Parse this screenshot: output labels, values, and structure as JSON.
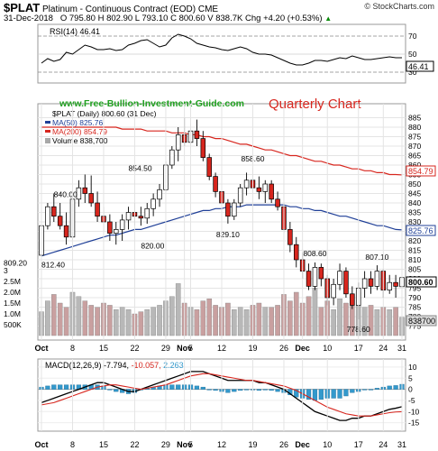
{
  "header": {
    "symbol": "$PLAT",
    "name": "Platinum - Continuous Contract (EOD)",
    "exchange": "CME",
    "date": "31-Dec-2018",
    "open": "O 795.80",
    "high": "H 802.90",
    "low": "L 793.10",
    "close": "C 800.60",
    "volume": "V 838.7K",
    "change": "Chg +4.20 (+0.53%)",
    "change_arrow": "▲",
    "source": "© StockCharts.com"
  },
  "rsi": {
    "legend": "RSI(14) 46.41",
    "value_tag": "46.41",
    "ticks": [
      "70",
      "50",
      "30"
    ],
    "levels": [
      70,
      50,
      30
    ],
    "values": [
      40,
      45,
      42,
      44,
      52,
      50,
      55,
      60,
      58,
      55,
      55,
      56,
      54,
      55,
      60,
      62,
      65,
      66,
      62,
      58,
      60,
      68,
      72,
      70,
      67,
      62,
      60,
      58,
      57,
      55,
      54,
      56,
      58,
      56,
      52,
      50,
      50,
      49,
      46,
      43,
      40,
      38,
      38,
      40,
      43,
      43,
      42,
      44,
      46,
      45,
      48,
      46,
      44,
      44,
      45,
      46,
      47,
      46,
      46
    ]
  },
  "watermark": "www.Free-Bullion-Investment-Guide.com",
  "annotation": "Quarterly Chart",
  "legend": {
    "price": "$PLAT (Daily) 800.60 (31 Dec)",
    "ma50": "MA(50) 825.76",
    "ma200": "MA(200) 854.79",
    "volume": "Volume 838,700"
  },
  "colors": {
    "up": "#ffffff",
    "down": "#d7261e",
    "ma50": "#1f3f97",
    "ma200": "#d7261e",
    "volume": "#a8a8a8",
    "rsi": "#000000",
    "hist": "#3399cc",
    "tag_close": "#000000"
  },
  "chart_data": {
    "type": "candlestick",
    "title": "$PLAT (Daily) 800.60 (31 Dec)",
    "ylim": [
      770,
      890
    ],
    "y_ticks": [
      "885",
      "880",
      "875",
      "870",
      "865",
      "860",
      "855",
      "850",
      "845",
      "840",
      "835",
      "830",
      "825",
      "820",
      "815",
      "810",
      "805",
      "800",
      "795",
      "790",
      "785",
      "780",
      "775"
    ],
    "x_tick_labels": [
      "Oct",
      "8",
      "15",
      "22",
      "29",
      "Nov",
      "5",
      "12",
      "19",
      "26",
      "Dec",
      "10",
      "17",
      "24",
      "31"
    ],
    "volume_ticks": [
      "3",
      "2.5M",
      "2.0M",
      "1.5M",
      "1.0M",
      "500K"
    ],
    "price_labels": [
      "840.00",
      "854.50",
      "812.40",
      "820.00",
      "858.60",
      "829.10",
      "808.60",
      "807.10",
      "778.60",
      "809.20"
    ],
    "right_tags": {
      "ma200": "854.79",
      "ma50": "825.76",
      "close": "800.60",
      "volume": "838700"
    },
    "ohlc": [
      [
        812.4,
        830,
        812.4,
        828
      ],
      [
        828,
        840,
        826,
        838
      ],
      [
        838,
        845,
        830,
        833
      ],
      [
        833,
        840,
        826,
        828
      ],
      [
        828,
        835,
        818,
        822
      ],
      [
        822,
        845,
        820,
        842
      ],
      [
        842,
        852,
        838,
        848
      ],
      [
        848,
        855,
        840,
        845
      ],
      [
        845,
        854.5,
        838,
        840
      ],
      [
        840,
        846,
        830,
        833
      ],
      [
        833,
        838,
        825,
        830
      ],
      [
        830,
        834,
        820,
        824
      ],
      [
        824,
        830,
        818,
        826
      ],
      [
        826,
        834,
        820,
        831
      ],
      [
        831,
        838,
        826,
        835
      ],
      [
        835,
        840,
        828,
        833
      ],
      [
        833,
        838,
        828,
        832
      ],
      [
        832,
        840,
        829,
        837
      ],
      [
        837,
        845,
        833,
        842
      ],
      [
        842,
        850,
        838,
        847
      ],
      [
        847,
        862,
        846,
        860
      ],
      [
        860,
        870,
        858,
        868
      ],
      [
        868,
        880,
        862,
        876
      ],
      [
        876,
        885,
        870,
        872
      ],
      [
        872,
        882,
        866,
        878
      ],
      [
        878,
        884,
        870,
        874
      ],
      [
        874,
        878,
        862,
        864
      ],
      [
        864,
        866,
        852,
        854
      ],
      [
        854,
        856,
        843,
        846
      ],
      [
        846,
        850,
        836,
        840
      ],
      [
        840,
        842,
        829.1,
        833
      ],
      [
        833,
        842,
        831,
        840
      ],
      [
        840,
        850,
        838,
        848
      ],
      [
        848,
        856,
        844,
        852
      ],
      [
        852,
        858.6,
        846,
        848
      ],
      [
        848,
        854,
        842,
        846
      ],
      [
        846,
        852,
        840,
        850
      ],
      [
        850,
        852,
        840,
        842
      ],
      [
        842,
        846,
        836,
        838
      ],
      [
        838,
        840,
        824,
        826
      ],
      [
        826,
        830,
        814,
        818
      ],
      [
        818,
        822,
        806,
        810
      ],
      [
        810,
        814,
        800,
        804
      ],
      [
        804,
        808,
        794,
        796
      ],
      [
        796,
        808.6,
        794,
        806
      ],
      [
        806,
        808,
        796,
        800
      ],
      [
        800,
        802,
        786,
        790
      ],
      [
        790,
        800,
        786,
        797
      ],
      [
        797,
        808,
        794,
        804
      ],
      [
        804,
        806,
        790,
        792
      ],
      [
        792,
        796,
        784,
        786
      ],
      [
        786,
        798,
        778.6,
        795
      ],
      [
        795,
        804,
        790,
        800
      ],
      [
        800,
        804,
        792,
        796
      ],
      [
        796,
        807.1,
        794,
        804
      ],
      [
        804,
        805,
        790,
        794
      ],
      [
        794,
        802,
        792,
        798
      ],
      [
        798,
        802,
        790,
        796
      ],
      [
        795.8,
        802.9,
        793.1,
        800.6
      ]
    ],
    "ma50": [
      812,
      813,
      814,
      815,
      816,
      817,
      818,
      819,
      820,
      821,
      822,
      823,
      823,
      824,
      825,
      826,
      826,
      827,
      828,
      829,
      830,
      831,
      832,
      833,
      834,
      835,
      836,
      836,
      837,
      837,
      838,
      838,
      838,
      839,
      839,
      839,
      839,
      839,
      839,
      839,
      838,
      838,
      837,
      837,
      836,
      836,
      835,
      834,
      833,
      833,
      832,
      831,
      830,
      829,
      828,
      828,
      827,
      826,
      825.76
    ],
    "ma200": [
      880,
      880,
      880,
      880,
      880,
      880,
      880,
      880,
      880,
      880,
      880,
      880,
      880,
      879,
      879,
      879,
      879,
      878,
      878,
      878,
      878,
      877,
      877,
      877,
      876,
      876,
      875,
      875,
      874,
      874,
      873,
      872,
      871,
      871,
      870,
      869,
      868,
      868,
      867,
      866,
      865,
      865,
      864,
      863,
      862,
      862,
      861,
      860,
      860,
      859,
      858,
      858,
      857,
      857,
      856,
      856,
      855,
      855,
      854.79
    ],
    "volume": [
      1.1,
      1.6,
      1.9,
      1.5,
      1.3,
      2.0,
      1.8,
      1.6,
      1.4,
      1.3,
      1.5,
      1.4,
      1.2,
      1.3,
      1.2,
      1.0,
      1.1,
      1.2,
      1.3,
      1.4,
      1.6,
      1.8,
      2.4,
      1.5,
      1.3,
      1.2,
      1.6,
      1.7,
      1.4,
      1.3,
      1.5,
      1.2,
      1.3,
      1.2,
      1.4,
      1.5,
      1.3,
      1.3,
      1.4,
      1.9,
      1.6,
      2.0,
      1.5,
      1.8,
      2.2,
      1.3,
      1.6,
      1.2,
      1.7,
      1.5,
      1.9,
      2.0,
      1.3,
      1.4,
      1.2,
      1.3,
      1.2,
      1.3,
      0.84
    ],
    "macd": {
      "legend_main": "MACD(12,26,9) -7.794,",
      "legend_signal": "-10.057,",
      "legend_hist": "2.263",
      "ticks": [
        "10",
        "5",
        "0",
        "-5",
        "-10",
        "-15"
      ],
      "ylim": [
        -18,
        12
      ],
      "macd": [
        -6,
        -5,
        -4,
        -3,
        -2,
        -1,
        0,
        1,
        2,
        3,
        3,
        2,
        1,
        0,
        -1,
        -1,
        0,
        1,
        2,
        3,
        4,
        5,
        6,
        7,
        8,
        8,
        8,
        7,
        6,
        5,
        4,
        4,
        4,
        4,
        4,
        3,
        3,
        2,
        1,
        0,
        -2,
        -4,
        -6,
        -8,
        -10,
        -11,
        -12,
        -13,
        -14,
        -14,
        -13,
        -13,
        -12,
        -12,
        -11,
        -10,
        -9,
        -8.5,
        -7.794
      ],
      "signal": [
        -7,
        -6.5,
        -6,
        -5,
        -4,
        -3,
        -2,
        -1,
        0,
        1,
        1.5,
        2,
        2,
        1.5,
        1,
        0.5,
        0,
        0.5,
        1,
        1.5,
        2,
        3,
        4,
        5,
        6,
        6.5,
        7,
        7,
        6.5,
        6,
        5.5,
        5,
        4.5,
        4,
        4,
        3.5,
        3,
        2.5,
        2,
        1.5,
        0.5,
        -0.5,
        -2,
        -3.5,
        -5,
        -6.5,
        -8,
        -9,
        -10,
        -11,
        -11.5,
        -12,
        -12,
        -12,
        -11.5,
        -11,
        -10.5,
        -10.2,
        -10.057
      ],
      "colors": {
        "macd": "#000000",
        "signal": "#d7261e",
        "hist": "#3399cc"
      }
    }
  }
}
